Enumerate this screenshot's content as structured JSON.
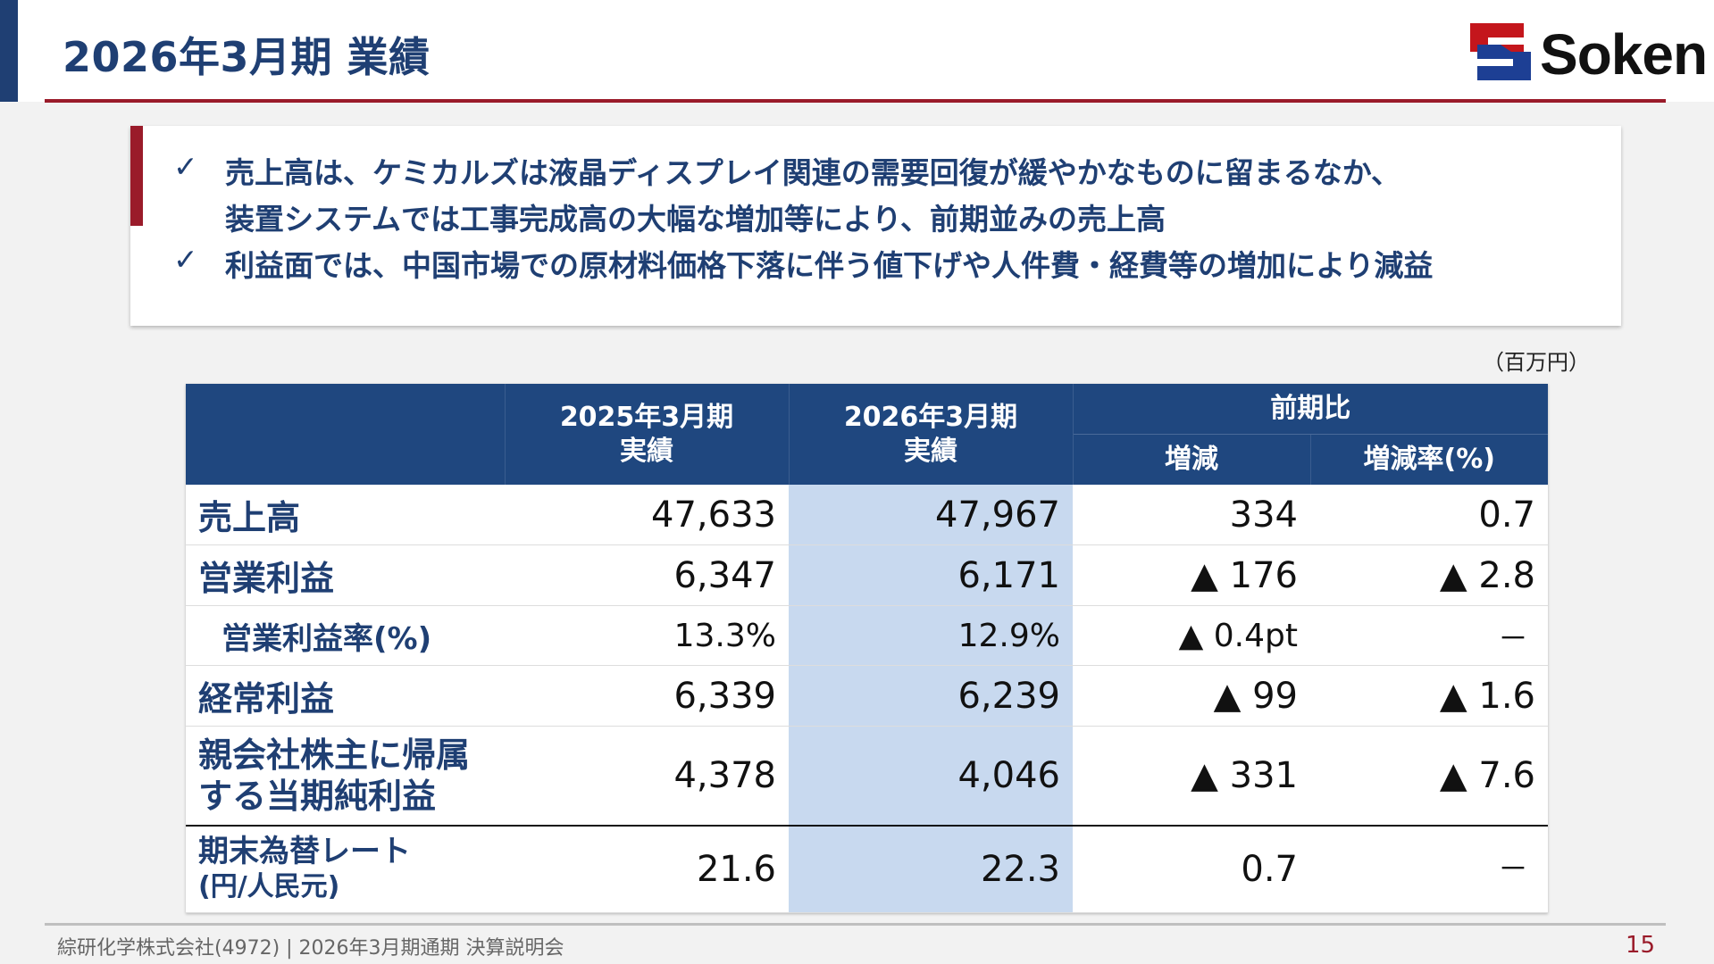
{
  "header": {
    "title": "2026年3月期 業績",
    "logo_text": "Soken",
    "colors": {
      "navy": "#1f3f73",
      "red": "#9a1b2a",
      "table_header": "#1f477f",
      "highlight": "#c8d9ef"
    }
  },
  "summary": {
    "check_glyph": "✓",
    "bullets": [
      {
        "line1": "売上高は、ケミカルズは液晶ディスプレイ関連の需要回復が緩やかなものに留まるなか、",
        "line2": "装置システムでは工事完成高の大幅な増加等により、前期並みの売上高"
      },
      {
        "line1": "利益面では、中国市場での原材料価格下落に伴う値下げや人件費・経費等の増加により減益"
      }
    ]
  },
  "unit_note": "（百万円）",
  "table": {
    "headers": {
      "col1_line1": "2025年3月期",
      "col1_line2": "実績",
      "col2_line1": "2026年3月期",
      "col2_line2": "実績",
      "comparison": "前期比",
      "change": "増減",
      "change_rate": "増減率(%)"
    },
    "rows": [
      {
        "label": "売上高",
        "prev": "47,633",
        "curr": "47,967",
        "change": "334",
        "rate": "0.7"
      },
      {
        "label": "営業利益",
        "prev": "6,347",
        "curr": "6,171",
        "change": "▲ 176",
        "rate": "▲ 2.8"
      },
      {
        "label": "営業利益率(%)",
        "prev": "13.3%",
        "curr": "12.9%",
        "change": "▲ 0.4pt",
        "rate": "－"
      },
      {
        "label": "経常利益",
        "prev": "6,339",
        "curr": "6,239",
        "change": "▲ 99",
        "rate": "▲ 1.6"
      },
      {
        "label_line1": "親会社株主に帰属",
        "label_line2": "する当期純利益",
        "prev": "4,378",
        "curr": "4,046",
        "change": "▲ 331",
        "rate": "▲ 7.6"
      },
      {
        "label_line1": "期末為替レート",
        "label_line2": "(円/人民元)",
        "prev": "21.6",
        "curr": "22.3",
        "change": "0.7",
        "rate": "－"
      }
    ]
  },
  "footer": {
    "text": "綜研化学株式会社(4972) | 2026年3月期通期 決算説明会",
    "page": "15"
  }
}
